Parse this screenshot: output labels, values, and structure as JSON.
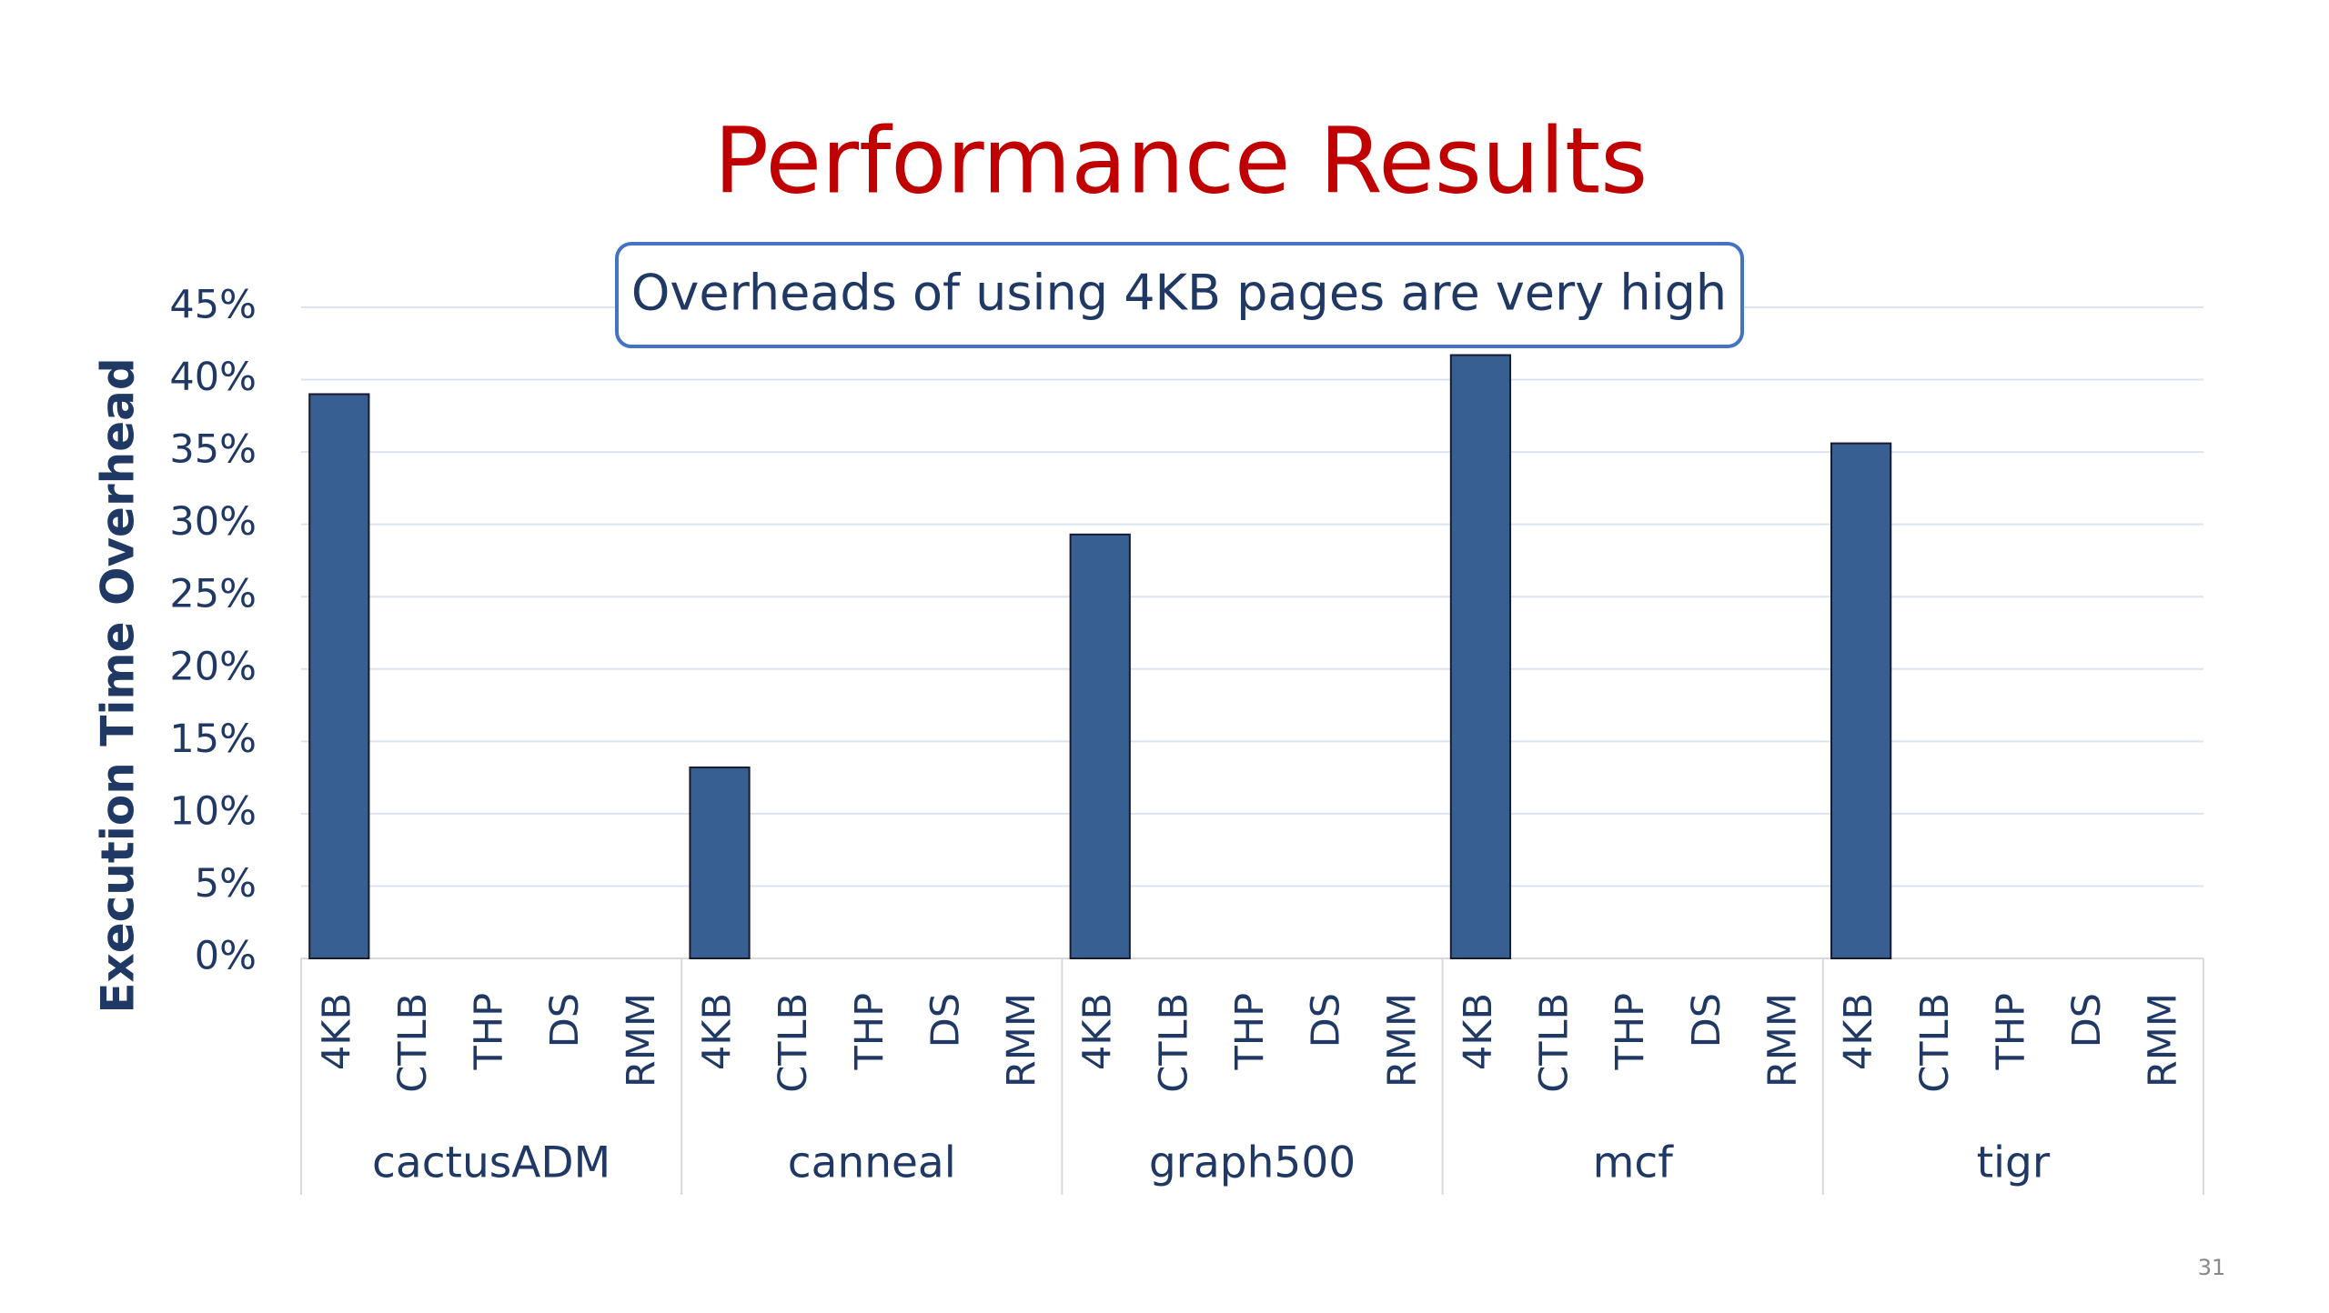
{
  "chart_data": {
    "type": "grouped-bar",
    "title": "Performance Results",
    "annotation": "Overheads of using 4KB pages are very high",
    "y_label": "Execution Time Overhead",
    "groups": [
      "cactusADM",
      "canneal",
      "graph500",
      "mcf",
      "tigr"
    ],
    "categories": [
      "4KB",
      "CTLB",
      "THP",
      "DS",
      "RMM"
    ],
    "values": [
      [
        39,
        null,
        null,
        null,
        null
      ],
      [
        13.2,
        null,
        null,
        null,
        null
      ],
      [
        29.3,
        null,
        null,
        null,
        null
      ],
      [
        41.7,
        null,
        null,
        null,
        null
      ],
      [
        35.6,
        null,
        null,
        null,
        null
      ]
    ],
    "color": "#375f91",
    "ylim": [
      0,
      45
    ],
    "yticks": [
      {
        "value": 0,
        "label": "0%"
      },
      {
        "value": 5,
        "label": "5%"
      },
      {
        "value": 10,
        "label": "10%"
      },
      {
        "value": 15,
        "label": "15%"
      },
      {
        "value": 20,
        "label": "20%"
      },
      {
        "value": 25,
        "label": "25%"
      },
      {
        "value": 30,
        "label": "30%"
      },
      {
        "value": 35,
        "label": "35%"
      },
      {
        "value": 40,
        "label": "40%"
      },
      {
        "value": 45,
        "label": "45%"
      }
    ],
    "grid": true,
    "page_number": 31
  }
}
